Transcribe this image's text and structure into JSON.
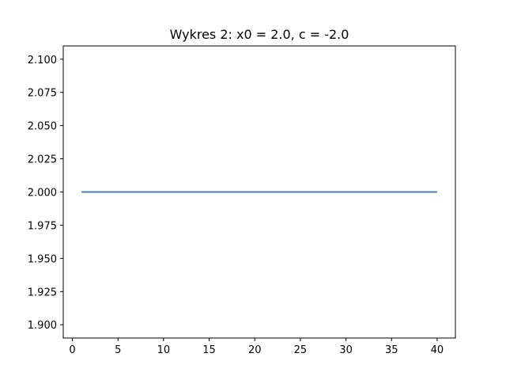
{
  "chart_data": {
    "type": "line",
    "title": "Wykres 2:  x0 = 2.0, c = -2.0",
    "xlabel": "",
    "ylabel": "",
    "xlim": [
      -1,
      42
    ],
    "ylim": [
      1.89,
      2.11
    ],
    "xticks": [
      0,
      5,
      10,
      15,
      20,
      25,
      30,
      35,
      40
    ],
    "xtick_labels": [
      "0",
      "5",
      "10",
      "15",
      "20",
      "25",
      "30",
      "35",
      "40"
    ],
    "yticks": [
      1.9,
      1.925,
      1.95,
      1.975,
      2.0,
      2.025,
      2.05,
      2.075,
      2.1
    ],
    "ytick_labels": [
      "1.900",
      "1.925",
      "1.950",
      "1.975",
      "2.000",
      "2.025",
      "2.050",
      "2.075",
      "2.100"
    ],
    "grid": false,
    "series": [
      {
        "color": "#1f77b4",
        "x": [
          1,
          2,
          3,
          4,
          5,
          6,
          7,
          8,
          9,
          10,
          11,
          12,
          13,
          14,
          15,
          16,
          17,
          18,
          19,
          20,
          21,
          22,
          23,
          24,
          25,
          26,
          27,
          28,
          29,
          30,
          31,
          32,
          33,
          34,
          35,
          36,
          37,
          38,
          39,
          40
        ],
        "y": [
          2.0,
          2.0,
          2.0,
          2.0,
          2.0,
          2.0,
          2.0,
          2.0,
          2.0,
          2.0,
          2.0,
          2.0,
          2.0,
          2.0,
          2.0,
          2.0,
          2.0,
          2.0,
          2.0,
          2.0,
          2.0,
          2.0,
          2.0,
          2.0,
          2.0,
          2.0,
          2.0,
          2.0,
          2.0,
          2.0,
          2.0,
          2.0,
          2.0,
          2.0,
          2.0,
          2.0,
          2.0,
          2.0,
          2.0,
          2.0
        ]
      }
    ]
  }
}
